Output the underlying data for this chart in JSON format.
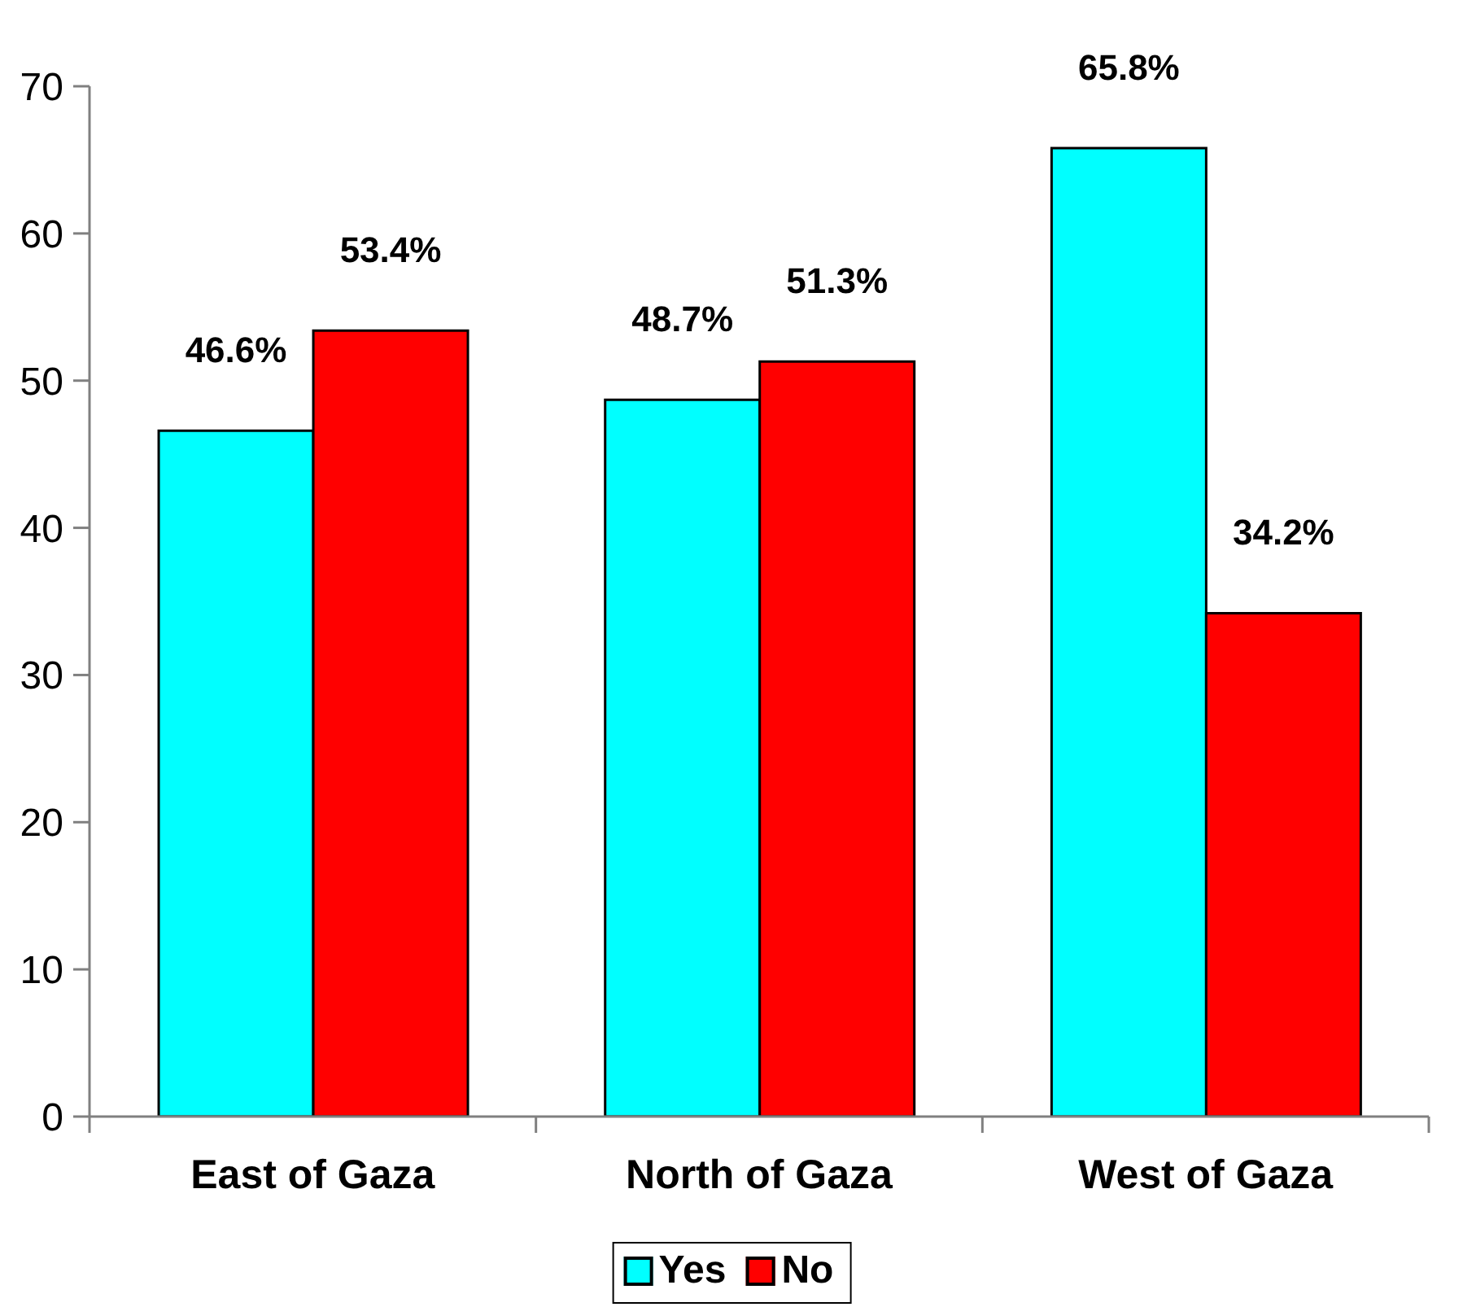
{
  "chart_data": {
    "type": "bar",
    "categories": [
      "East of Gaza",
      "North of Gaza",
      "West of Gaza"
    ],
    "series": [
      {
        "name": "Yes",
        "color": "#00ffff",
        "values": [
          46.6,
          48.7,
          65.8
        ],
        "value_labels": [
          "46.6%",
          "48.7%",
          "65.8%"
        ]
      },
      {
        "name": "No",
        "color": "#ff0000",
        "values": [
          53.4,
          51.3,
          34.2
        ],
        "value_labels": [
          "53.4%",
          "51.3%",
          "34.2%"
        ]
      }
    ],
    "ylim": [
      0,
      70
    ],
    "yticks": [
      0,
      10,
      20,
      30,
      40,
      50,
      60,
      70
    ],
    "legend": "bottom"
  }
}
